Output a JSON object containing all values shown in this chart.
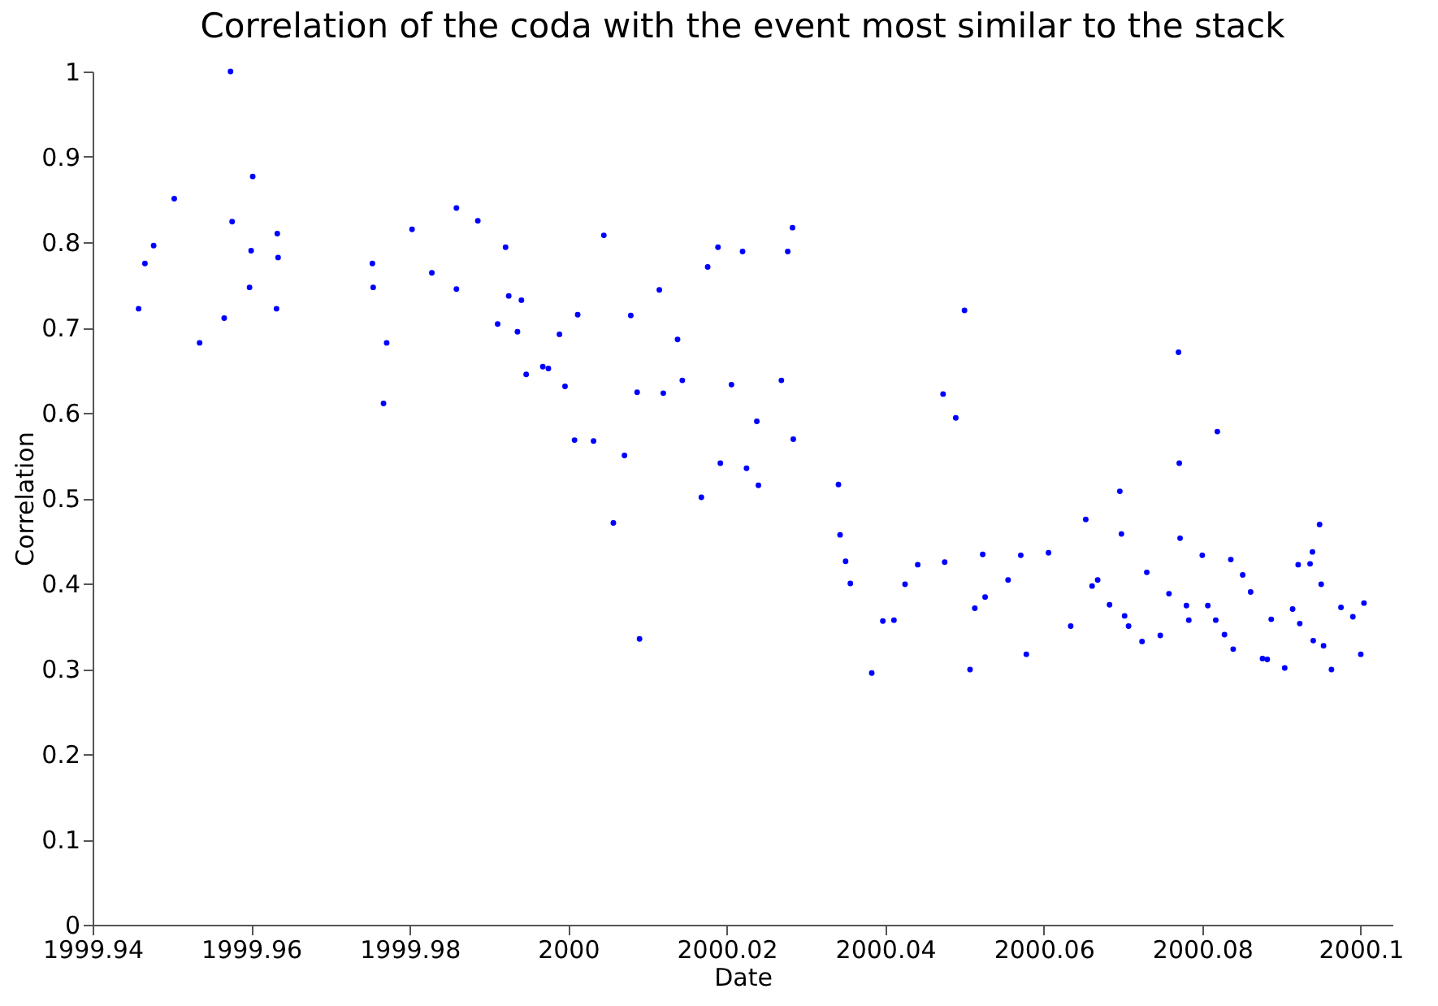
{
  "chart_data": {
    "type": "scatter",
    "title": "Correlation of the coda with the event most similar to the stack",
    "xlabel": "Date",
    "ylabel": "Correlation",
    "xlim": [
      1999.94,
      2000.104
    ],
    "ylim": [
      0,
      1
    ],
    "xticks": [
      1999.94,
      1999.96,
      1999.98,
      2000,
      2000.02,
      2000.04,
      2000.06,
      2000.08,
      2000.1
    ],
    "yticks": [
      0,
      0.1,
      0.2,
      0.3,
      0.4,
      0.5,
      0.6,
      0.7,
      0.8,
      0.9,
      1
    ],
    "grid": false,
    "marker": "circle",
    "series": [
      {
        "color": "#0000ff",
        "x": [
          1999.9458,
          1999.9466,
          1999.9477,
          1999.9503,
          1999.9535,
          1999.9566,
          1999.9574,
          1999.9576,
          1999.9598,
          1999.96,
          1999.9602,
          1999.9633,
          1999.9634,
          1999.9632,
          1999.9753,
          1999.9754,
          1999.9771,
          1999.9767,
          1999.9803,
          1999.9828,
          1999.9859,
          1999.9859,
          1999.9886,
          1999.9921,
          1999.9925,
          1999.9941,
          1999.9911,
          1999.9936,
          1999.9968,
          1999.9975,
          1999.9947,
          1999.9989,
          2000.0045,
          2000.0012,
          2000.0079,
          1999.9996,
          2000.0087,
          2000.012,
          2000.0144,
          2000.0138,
          2000.0115,
          2000.0176,
          2000.0189,
          2000.022,
          2000.0277,
          2000.0283,
          2000.0206,
          2000.0269,
          2000.0008,
          2000.0032,
          2000.0071,
          2000.0057,
          2000.009,
          2000.0238,
          2000.0284,
          2000.0192,
          2000.0225,
          2000.024,
          2000.0168,
          2000.0341,
          2000.0343,
          2000.035,
          2000.0356,
          2000.0397,
          2000.0411,
          2000.0383,
          2000.0425,
          2000.0441,
          2000.0473,
          2000.0475,
          2000.05,
          2000.0489,
          2000.0523,
          2000.0513,
          2000.0526,
          2000.0507,
          2000.0555,
          2000.0571,
          2000.0578,
          2000.0606,
          2000.0634,
          2000.0653,
          2000.0661,
          2000.0668,
          2000.0683,
          2000.0696,
          2000.0698,
          2000.0702,
          2000.0707,
          2000.0724,
          2000.073,
          2000.0747,
          2000.0758,
          2000.077,
          2000.0771,
          2000.0772,
          2000.078,
          2000.0783,
          2000.08,
          2000.0807,
          2000.0817,
          2000.0819,
          2000.0828,
          2000.0836,
          2000.0839,
          2000.0851,
          2000.0861,
          2000.0876,
          2000.0882,
          2000.0887,
          2000.0904,
          2000.0914,
          2000.0921,
          2000.0923,
          2000.0936,
          2000.0939,
          2000.094,
          2000.0948,
          2000.095,
          2000.0953,
          2000.0963,
          2000.0975,
          2000.099,
          2000.1,
          2000.1004
        ],
        "values": [
          0.722,
          0.775,
          0.796,
          0.851,
          0.682,
          0.711,
          1.0,
          0.824,
          0.747,
          0.79,
          0.877,
          0.81,
          0.782,
          0.722,
          0.775,
          0.747,
          0.682,
          0.611,
          0.815,
          0.764,
          0.745,
          0.84,
          0.825,
          0.794,
          0.737,
          0.732,
          0.704,
          0.695,
          0.654,
          0.652,
          0.645,
          0.692,
          0.808,
          0.715,
          0.714,
          0.631,
          0.624,
          0.623,
          0.638,
          0.686,
          0.744,
          0.771,
          0.794,
          0.789,
          0.789,
          0.817,
          0.633,
          0.638,
          0.568,
          0.567,
          0.55,
          0.471,
          0.335,
          0.59,
          0.569,
          0.541,
          0.535,
          0.515,
          0.501,
          0.516,
          0.457,
          0.426,
          0.4,
          0.356,
          0.357,
          0.295,
          0.399,
          0.422,
          0.622,
          0.425,
          0.72,
          0.594,
          0.434,
          0.371,
          0.384,
          0.299,
          0.404,
          0.433,
          0.317,
          0.436,
          0.35,
          0.475,
          0.397,
          0.404,
          0.375,
          0.508,
          0.458,
          0.362,
          0.35,
          0.332,
          0.413,
          0.339,
          0.388,
          0.671,
          0.541,
          0.453,
          0.374,
          0.357,
          0.433,
          0.374,
          0.357,
          0.578,
          0.34,
          0.428,
          0.323,
          0.41,
          0.39,
          0.312,
          0.311,
          0.358,
          0.301,
          0.37,
          0.422,
          0.353,
          0.423,
          0.437,
          0.333,
          0.469,
          0.399,
          0.327,
          0.299,
          0.372,
          0.361,
          0.317,
          0.377
        ]
      }
    ]
  }
}
